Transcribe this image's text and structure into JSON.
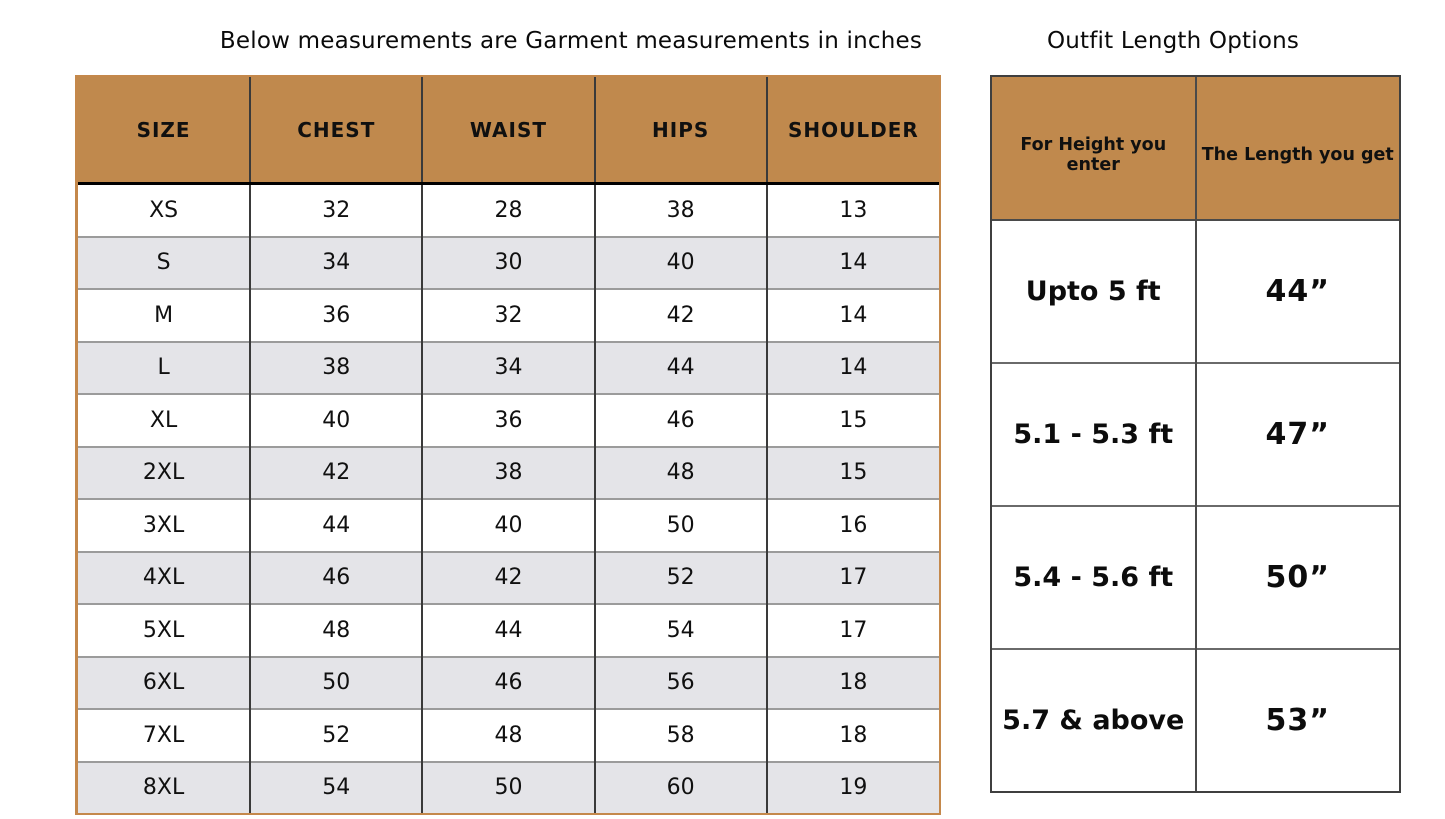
{
  "left_table": {
    "title": "Below measurements are Garment measurements in inches",
    "columns": [
      "SIZE",
      "CHEST",
      "WAIST",
      "HIPS",
      "SHOULDER"
    ],
    "rows": [
      [
        "XS",
        "32",
        "28",
        "38",
        "13"
      ],
      [
        "S",
        "34",
        "30",
        "40",
        "14"
      ],
      [
        "M",
        "36",
        "32",
        "42",
        "14"
      ],
      [
        "L",
        "38",
        "34",
        "44",
        "14"
      ],
      [
        "XL",
        "40",
        "36",
        "46",
        "15"
      ],
      [
        "2XL",
        "42",
        "38",
        "48",
        "15"
      ],
      [
        "3XL",
        "44",
        "40",
        "50",
        "16"
      ],
      [
        "4XL",
        "46",
        "42",
        "52",
        "17"
      ],
      [
        "5XL",
        "48",
        "44",
        "54",
        "17"
      ],
      [
        "6XL",
        "50",
        "46",
        "56",
        "18"
      ],
      [
        "7XL",
        "52",
        "48",
        "58",
        "18"
      ],
      [
        "8XL",
        "54",
        "50",
        "60",
        "19"
      ]
    ]
  },
  "right_table": {
    "title": "Outfit Length Options",
    "columns": [
      "For Height you enter",
      "The Length you get"
    ],
    "rows": [
      [
        "Upto 5 ft",
        "44”"
      ],
      [
        "5.1 - 5.3 ft",
        "47”"
      ],
      [
        "5.4 - 5.6 ft",
        "50”"
      ],
      [
        "5.7 & above",
        "53”"
      ]
    ]
  },
  "colors": {
    "header_bg": "#c0894d",
    "alt_row_bg": "#e4e4e8",
    "left_table_border": "#c4884b",
    "right_table_border": "#3f3f3f",
    "column_divider": "#3a3a3a",
    "row_divider": "#9b9b9b"
  }
}
